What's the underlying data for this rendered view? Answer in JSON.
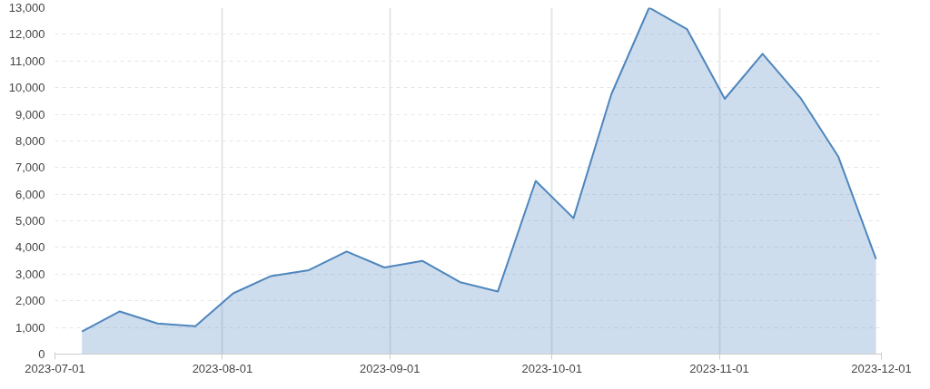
{
  "chart_data": {
    "type": "area",
    "x": [
      "2023-07-06",
      "2023-07-13",
      "2023-07-20",
      "2023-07-27",
      "2023-08-03",
      "2023-08-10",
      "2023-08-17",
      "2023-08-24",
      "2023-08-31",
      "2023-09-07",
      "2023-09-14",
      "2023-09-21",
      "2023-09-28",
      "2023-10-05",
      "2023-10-12",
      "2023-10-19",
      "2023-10-26",
      "2023-11-02",
      "2023-11-09",
      "2023-11-16",
      "2023-11-23",
      "2023-11-30"
    ],
    "series": [
      {
        "color": "#4e86bd",
        "values": [
          850,
          1600,
          1150,
          1050,
          2280,
          2930,
          3150,
          3850,
          3250,
          3500,
          2700,
          2350,
          6500,
          5100,
          9750,
          13000,
          12200,
          9580,
          11270,
          9620,
          7420,
          3570
        ]
      }
    ],
    "xlim": [
      "2023-07-01",
      "2023-12-01"
    ],
    "xticks": [
      "2023-07-01",
      "2023-08-01",
      "2023-09-01",
      "2023-10-01",
      "2023-11-01",
      "2023-12-01"
    ],
    "ylim": [
      0,
      13000
    ],
    "yticks": [
      0,
      {
        "value": 1000,
        "label": "1,000"
      },
      {
        "value": 2000,
        "label": "2,000"
      },
      {
        "value": 3000,
        "label": "3,000"
      },
      {
        "value": 4000,
        "label": "4,000"
      },
      {
        "value": 5000,
        "label": "5,000"
      },
      {
        "value": 6000,
        "label": "6,000"
      },
      {
        "value": 7000,
        "label": "7,000"
      },
      {
        "value": 8000,
        "label": "8,000"
      },
      {
        "value": 9000,
        "label": "9,000"
      },
      {
        "value": 10000,
        "label": "10,000"
      },
      {
        "value": 11000,
        "label": "11,000"
      },
      {
        "value": 12000,
        "label": "12,000"
      },
      {
        "value": 13000,
        "label": "13,000"
      }
    ],
    "grid": true
  }
}
